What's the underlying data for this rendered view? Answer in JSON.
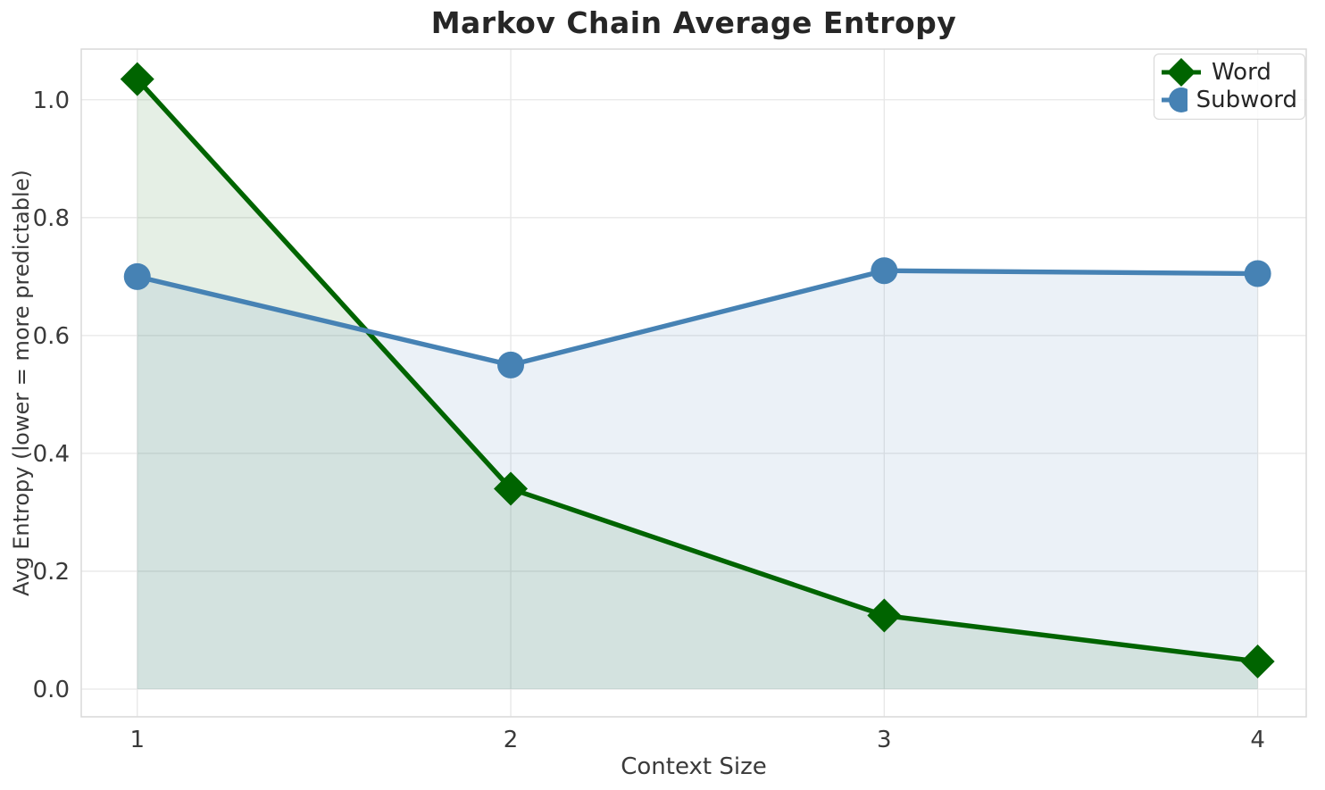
{
  "chart_data": {
    "type": "line",
    "title": "Markov Chain Average Entropy",
    "xlabel": "Context Size",
    "ylabel": "Avg Entropy (lower = more predictable)",
    "x": [
      1,
      2,
      3,
      4
    ],
    "series": [
      {
        "name": "Word",
        "values": [
          1.035,
          0.34,
          0.125,
          0.047
        ],
        "color": "#006400",
        "marker": "diamond",
        "fill_opacity": 0.1
      },
      {
        "name": "Subword",
        "values": [
          0.7,
          0.55,
          0.71,
          0.705
        ],
        "color": "#4682b4",
        "marker": "circle",
        "fill_opacity": 0.11
      }
    ],
    "xtick_labels": [
      "1",
      "2",
      "3",
      "4"
    ],
    "ytick_values": [
      0.0,
      0.2,
      0.4,
      0.6,
      0.8,
      1.0
    ],
    "ytick_labels": [
      "0.0",
      "0.2",
      "0.4",
      "0.6",
      "0.8",
      "1.0"
    ],
    "xlim": [
      0.85,
      4.13
    ],
    "ylim": [
      -0.047,
      1.086
    ],
    "grid": true,
    "grid_color": "#e7e7e7",
    "spine_color": "#d9d9d9",
    "area_fill_baseline": 0,
    "legend_position": "upper right"
  }
}
